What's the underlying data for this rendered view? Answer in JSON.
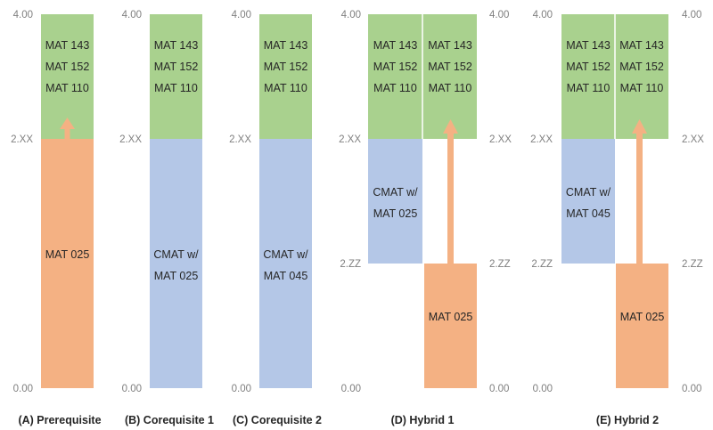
{
  "colors": {
    "prereq": "#f4b183",
    "coreq": "#b4c7e7",
    "credit": "#a9d18e",
    "arrow": "#f4b183",
    "axis_text": "#7f7f7f",
    "block_text": "#262626"
  },
  "axis_ticks": {
    "top": "4.00",
    "mid": "2.XX",
    "low": "2.ZZ",
    "bottom": "0.00"
  },
  "blocks": {
    "credit_lines": [
      "MAT 143",
      "MAT 152",
      "MAT 110"
    ],
    "prereq_label": "MAT 025",
    "coreq_025_lines": [
      "CMAT w/",
      "MAT 025"
    ],
    "coreq_045_lines": [
      "CMAT w/",
      "MAT 045"
    ]
  },
  "panels": [
    {
      "id": "A",
      "title": "(A) Prerequisite"
    },
    {
      "id": "B",
      "title": "(B) Corequisite 1"
    },
    {
      "id": "C",
      "title": "(C) Corequisite 2"
    },
    {
      "id": "D",
      "title": "(D) Hybrid 1"
    },
    {
      "id": "E",
      "title": "(E) Hybrid 2"
    }
  ]
}
